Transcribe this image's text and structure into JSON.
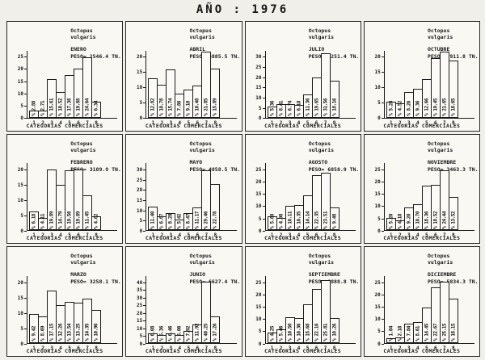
{
  "page_title": "AÑO : 1976",
  "species_line1": "Octopus",
  "species_line2": "vulgaris",
  "x_axis_label": "CATEGORIAS COMERCIALES",
  "x_categories": [
    "1",
    "2",
    "3",
    "4",
    "5",
    "6",
    "7",
    "8"
  ],
  "percent_prefix": "%",
  "ink_color": "#161616",
  "paper_color": "#f1efe9",
  "chart_data": [
    {
      "type": "bar",
      "month": "ENERO",
      "peso_line": "PESO= 2546.4 TN.",
      "ylim": [
        0,
        25
      ],
      "ymax": 25,
      "ytick_step": 5,
      "xlabel": "CATEGORIAS COMERCIALES",
      "categories": [
        "1",
        "2",
        "3",
        "4",
        "5",
        "6",
        "7",
        "8"
      ],
      "values": [
        2.88,
        2.71,
        15.61,
        10.52,
        17.38,
        19.88,
        24.64,
        6.34
      ]
    },
    {
      "type": "bar",
      "month": "ABRIL",
      "peso_line": "PESO= 6885.5 TN.",
      "ylim": [
        0,
        20
      ],
      "ymax": 20,
      "ytick_step": 5,
      "xlabel": "CATEGORIAS COMERCIALES",
      "categories": [
        "1",
        "2",
        "3",
        "4",
        "5",
        "6",
        "7",
        "8"
      ],
      "values": [
        12.82,
        10.78,
        15.74,
        7.86,
        9.18,
        10.48,
        21.85,
        15.89
      ]
    },
    {
      "type": "bar",
      "month": "JULIO",
      "peso_line": "PESO= 6251.4 TN.",
      "ylim": [
        0,
        30
      ],
      "ymax": 30,
      "ytick_step": 5,
      "xlabel": "CATEGORIAS COMERCIALES",
      "categories": [
        "1",
        "2",
        "3",
        "4",
        "5",
        "6",
        "7",
        "8"
      ],
      "values": [
        5.36,
        6.41,
        6.74,
        6.18,
        11.36,
        19.65,
        31.56,
        18.16
      ]
    },
    {
      "type": "bar",
      "month": "OCTUBRE",
      "peso_line": "PESO= 8911.8 TN.",
      "ylim": [
        0,
        20
      ],
      "ymax": 20,
      "ytick_step": 5,
      "xlabel": "CATEGORIAS COMERCIALES",
      "categories": [
        "1",
        "2",
        "3",
        "4",
        "5",
        "6",
        "7",
        "8"
      ],
      "values": [
        5.28,
        4.52,
        8.26,
        9.36,
        12.66,
        19.45,
        21.65,
        18.65
      ]
    },
    {
      "type": "bar",
      "month": "FEBRERO",
      "peso_line": "PESO= 3189.9 TN.",
      "ylim": [
        0,
        20
      ],
      "ymax": 20,
      "ytick_step": 5,
      "xlabel": "CATEGORIAS COMERCIALES",
      "categories": [
        "1",
        "2",
        "3",
        "4",
        "5",
        "6",
        "7",
        "8"
      ],
      "values": [
        6.18,
        4.11,
        19.89,
        14.79,
        19.58,
        19.89,
        11.45,
        4.62
      ]
    },
    {
      "type": "bar",
      "month": "MAYO",
      "peso_line": "PESO= 4858.5 TN.",
      "ylim": [
        0,
        30
      ],
      "ymax": 30,
      "ytick_step": 5,
      "xlabel": "CATEGORIAS COMERCIALES",
      "categories": [
        "1",
        "2",
        "3",
        "4",
        "5",
        "6",
        "7",
        "8"
      ],
      "values": [
        11.4,
        6.67,
        8.28,
        5.42,
        8.47,
        11.17,
        29.46,
        22.78
      ]
    },
    {
      "type": "bar",
      "month": "AGOSTO",
      "peso_line": "PESO= 6858.9 TN.",
      "ylim": [
        0,
        25
      ],
      "ymax": 25,
      "ytick_step": 5,
      "xlabel": "CATEGORIAS COMERCIALES",
      "categories": [
        "1",
        "2",
        "3",
        "4",
        "5",
        "6",
        "7",
        "8"
      ],
      "values": [
        5.68,
        4.98,
        10.11,
        10.35,
        14.14,
        22.35,
        23.51,
        9.48
      ]
    },
    {
      "type": "bar",
      "month": "NOVIEMBRE",
      "peso_line": "PESO= 3463.3 TN.",
      "ylim": [
        0,
        25
      ],
      "ymax": 25,
      "ytick_step": 5,
      "xlabel": "CATEGORIAS COMERCIALES",
      "categories": [
        "1",
        "2",
        "3",
        "4",
        "5",
        "6",
        "7",
        "8"
      ],
      "values": [
        5.2,
        4.18,
        9.2,
        10.7,
        18.36,
        18.52,
        24.44,
        13.52
      ]
    },
    {
      "type": "bar",
      "month": "MARZO",
      "peso_line": "PESO= 3258.1 TN.",
      "ylim": [
        0,
        20
      ],
      "ymax": 20,
      "ytick_step": 5,
      "xlabel": "CATEGORIAS COMERCIALES",
      "categories": [
        "1",
        "2",
        "3",
        "4",
        "5",
        "6",
        "7",
        "8"
      ],
      "values": [
        9.42,
        8.69,
        17.15,
        12.26,
        13.54,
        13.25,
        14.35,
        10.9
      ]
    },
    {
      "type": "bar",
      "month": "JUNIO",
      "peso_line": "PESO= 6627.4 TN.",
      "ylim": [
        0,
        40
      ],
      "ymax": 40,
      "ytick_step": 5,
      "xlabel": "CATEGORIAS COMERCIALES",
      "categories": [
        "1",
        "2",
        "3",
        "4",
        "5",
        "6",
        "7",
        "8"
      ],
      "values": [
        6.08,
        5.36,
        6.46,
        5.06,
        7.92,
        11.92,
        40.25,
        17.26
      ]
    },
    {
      "type": "bar",
      "month": "SEPTIEMBRE",
      "peso_line": "PESO= 8888.8 TN.",
      "ylim": [
        0,
        25
      ],
      "ymax": 25,
      "ytick_step": 5,
      "xlabel": "CATEGORIAS COMERCIALES",
      "categories": [
        "1",
        "2",
        "3",
        "4",
        "5",
        "6",
        "7",
        "8"
      ],
      "values": [
        4.25,
        5.46,
        10.5,
        10.36,
        15.68,
        22.16,
        25.81,
        10.26
      ]
    },
    {
      "type": "bar",
      "month": "DICIEMBRE",
      "peso_line": "PESO= 5834.3 TN.",
      "ylim": [
        0,
        25
      ],
      "ymax": 25,
      "ytick_step": 5,
      "xlabel": "CATEGORIAS COMERCIALES",
      "categories": [
        "1",
        "2",
        "3",
        "4",
        "5",
        "6",
        "7",
        "8"
      ],
      "values": [
        1.84,
        2.18,
        7.84,
        8.61,
        14.45,
        22.67,
        25.15,
        18.15
      ]
    }
  ]
}
